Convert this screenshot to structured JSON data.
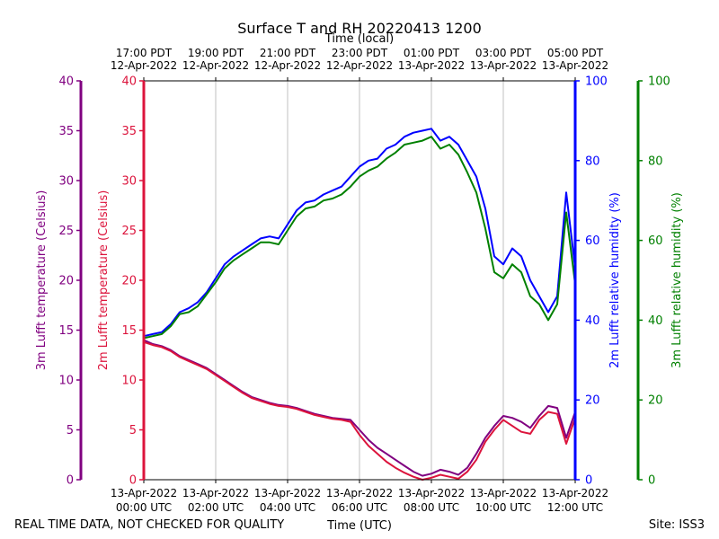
{
  "chart_data": {
    "type": "line",
    "title": "Surface T and RH 20220413 1200",
    "top_axis_label": "Time (local)",
    "xlabel": "Time (UTC)",
    "footer_left": "REAL TIME DATA, NOT CHECKED FOR QUALITY",
    "footer_right": "Site: ISS3",
    "x_range_hours": [
      0,
      12
    ],
    "x_ticks": [
      {
        "h": 0,
        "date": "13-Apr-2022",
        "time": "00:00 UTC"
      },
      {
        "h": 2,
        "date": "13-Apr-2022",
        "time": "02:00 UTC"
      },
      {
        "h": 4,
        "date": "13-Apr-2022",
        "time": "04:00 UTC"
      },
      {
        "h": 6,
        "date": "13-Apr-2022",
        "time": "06:00 UTC"
      },
      {
        "h": 8,
        "date": "13-Apr-2022",
        "time": "08:00 UTC"
      },
      {
        "h": 10,
        "date": "13-Apr-2022",
        "time": "10:00 UTC"
      },
      {
        "h": 12,
        "date": "13-Apr-2022",
        "time": "12:00 UTC"
      }
    ],
    "top_ticks": [
      {
        "h": 0,
        "time": "17:00 PDT",
        "date": "12-Apr-2022"
      },
      {
        "h": 2,
        "time": "19:00 PDT",
        "date": "12-Apr-2022"
      },
      {
        "h": 4,
        "time": "21:00 PDT",
        "date": "12-Apr-2022"
      },
      {
        "h": 6,
        "time": "23:00 PDT",
        "date": "12-Apr-2022"
      },
      {
        "h": 8,
        "time": "01:00 PDT",
        "date": "13-Apr-2022"
      },
      {
        "h": 10,
        "time": "03:00 PDT",
        "date": "13-Apr-2022"
      },
      {
        "h": 12,
        "time": "05:00 PDT",
        "date": "13-Apr-2022"
      }
    ],
    "axes": [
      {
        "id": "t3m",
        "label": "3m Lufft temperature (Celsius)",
        "color": "#800080",
        "ylim": [
          0,
          40
        ],
        "ticks": [
          0,
          5,
          10,
          15,
          20,
          25,
          30,
          35,
          40
        ]
      },
      {
        "id": "t2m",
        "label": "2m Lufft temperature (Celsius)",
        "color": "#dc143c",
        "ylim": [
          0,
          40
        ],
        "ticks": [
          0,
          5,
          10,
          15,
          20,
          25,
          30,
          35,
          40
        ]
      },
      {
        "id": "rh2m",
        "label": "2m Lufft relative humidity (%)",
        "color": "#0000ff",
        "ylim": [
          0,
          100
        ],
        "ticks": [
          0,
          20,
          40,
          60,
          80,
          100
        ]
      },
      {
        "id": "rh3m",
        "label": "3m Lufft relative humidity (%)",
        "color": "#008000",
        "ylim": [
          0,
          100
        ],
        "ticks": [
          0,
          20,
          40,
          60,
          80,
          100
        ]
      }
    ],
    "series": [
      {
        "name": "3m Lufft temperature",
        "axis": "t3m",
        "color": "#800080",
        "x": [
          0,
          0.25,
          0.5,
          0.75,
          1,
          1.25,
          1.5,
          1.75,
          2,
          2.25,
          2.5,
          2.75,
          3,
          3.25,
          3.5,
          3.75,
          4,
          4.25,
          4.5,
          4.75,
          5,
          5.25,
          5.5,
          5.75,
          6,
          6.25,
          6.5,
          6.75,
          7,
          7.25,
          7.5,
          7.75,
          8,
          8.25,
          8.5,
          8.75,
          9,
          9.25,
          9.5,
          9.75,
          10,
          10.25,
          10.5,
          10.75,
          11,
          11.25,
          11.5,
          11.75,
          12
        ],
        "values": [
          14.0,
          13.6,
          13.4,
          13.0,
          12.4,
          12.0,
          11.6,
          11.2,
          10.6,
          10.0,
          9.4,
          8.8,
          8.3,
          8.0,
          7.7,
          7.5,
          7.4,
          7.2,
          6.9,
          6.6,
          6.4,
          6.2,
          6.1,
          6.0,
          5.0,
          4.0,
          3.2,
          2.6,
          2.0,
          1.4,
          0.8,
          0.4,
          0.6,
          1.0,
          0.8,
          0.5,
          1.2,
          2.6,
          4.2,
          5.4,
          6.4,
          6.2,
          5.8,
          5.2,
          6.4,
          7.4,
          7.2,
          4.2,
          6.8
        ]
      },
      {
        "name": "2m Lufft temperature",
        "axis": "t2m",
        "color": "#dc143c",
        "x": [
          0,
          0.25,
          0.5,
          0.75,
          1,
          1.25,
          1.5,
          1.75,
          2,
          2.25,
          2.5,
          2.75,
          3,
          3.25,
          3.5,
          3.75,
          4,
          4.25,
          4.5,
          4.75,
          5,
          5.25,
          5.5,
          5.75,
          6,
          6.25,
          6.5,
          6.75,
          7,
          7.25,
          7.5,
          7.75,
          8,
          8.25,
          8.5,
          8.75,
          9,
          9.25,
          9.5,
          9.75,
          10,
          10.25,
          10.5,
          10.75,
          11,
          11.25,
          11.5,
          11.75,
          12
        ],
        "values": [
          13.8,
          13.5,
          13.3,
          12.9,
          12.3,
          11.9,
          11.5,
          11.1,
          10.5,
          9.9,
          9.3,
          8.7,
          8.2,
          7.9,
          7.6,
          7.4,
          7.3,
          7.1,
          6.8,
          6.5,
          6.3,
          6.1,
          6.0,
          5.8,
          4.5,
          3.4,
          2.6,
          1.8,
          1.2,
          0.7,
          0.3,
          0.0,
          0.2,
          0.5,
          0.3,
          0.1,
          0.8,
          2.0,
          3.8,
          5.0,
          6.0,
          5.4,
          4.8,
          4.6,
          6.0,
          6.8,
          6.6,
          3.6,
          6.2
        ]
      },
      {
        "name": "2m Lufft relative humidity",
        "axis": "rh2m",
        "color": "#0000ff",
        "x": [
          0,
          0.25,
          0.5,
          0.75,
          1,
          1.25,
          1.5,
          1.75,
          2,
          2.25,
          2.5,
          2.75,
          3,
          3.25,
          3.5,
          3.75,
          4,
          4.25,
          4.5,
          4.75,
          5,
          5.25,
          5.5,
          5.75,
          6,
          6.25,
          6.5,
          6.75,
          7,
          7.25,
          7.5,
          7.75,
          8,
          8.25,
          8.5,
          8.75,
          9,
          9.25,
          9.5,
          9.75,
          10,
          10.25,
          10.5,
          10.75,
          11,
          11.25,
          11.5,
          11.75,
          12
        ],
        "values": [
          36.0,
          36.5,
          37.0,
          39.0,
          42.0,
          43.0,
          44.5,
          47.0,
          50.5,
          54.0,
          56.0,
          57.5,
          59.0,
          60.5,
          61.0,
          60.5,
          64.0,
          67.5,
          69.5,
          70.0,
          71.5,
          72.5,
          73.5,
          76.0,
          78.5,
          80.0,
          80.5,
          83.0,
          84.0,
          86.0,
          87.0,
          87.5,
          88.0,
          85.0,
          86.0,
          84.0,
          80.0,
          76.0,
          68.0,
          56.0,
          54.0,
          58.0,
          56.0,
          50.0,
          46.0,
          42.0,
          46.0,
          72.0,
          53.0
        ]
      },
      {
        "name": "3m Lufft relative humidity",
        "axis": "rh3m",
        "color": "#008000",
        "x": [
          0,
          0.25,
          0.5,
          0.75,
          1,
          1.25,
          1.5,
          1.75,
          2,
          2.25,
          2.5,
          2.75,
          3,
          3.25,
          3.5,
          3.75,
          4,
          4.25,
          4.5,
          4.75,
          5,
          5.25,
          5.5,
          5.75,
          6,
          6.25,
          6.5,
          6.75,
          7,
          7.25,
          7.5,
          7.75,
          8,
          8.25,
          8.5,
          8.75,
          9,
          9.25,
          9.5,
          9.75,
          10,
          10.25,
          10.5,
          10.75,
          11,
          11.25,
          11.5,
          11.75,
          12
        ],
        "values": [
          35.5,
          36.0,
          36.5,
          38.5,
          41.5,
          42.0,
          43.5,
          46.5,
          49.5,
          53.0,
          55.0,
          56.5,
          58.0,
          59.5,
          59.5,
          59.0,
          62.5,
          66.0,
          68.0,
          68.5,
          70.0,
          70.5,
          71.5,
          73.5,
          76.0,
          77.5,
          78.5,
          80.5,
          82.0,
          84.0,
          84.5,
          85.0,
          86.0,
          83.0,
          84.0,
          81.5,
          77.0,
          72.0,
          63.0,
          52.0,
          50.5,
          54.0,
          52.0,
          46.0,
          44.0,
          40.0,
          44.0,
          67.0,
          49.0
        ]
      }
    ]
  }
}
